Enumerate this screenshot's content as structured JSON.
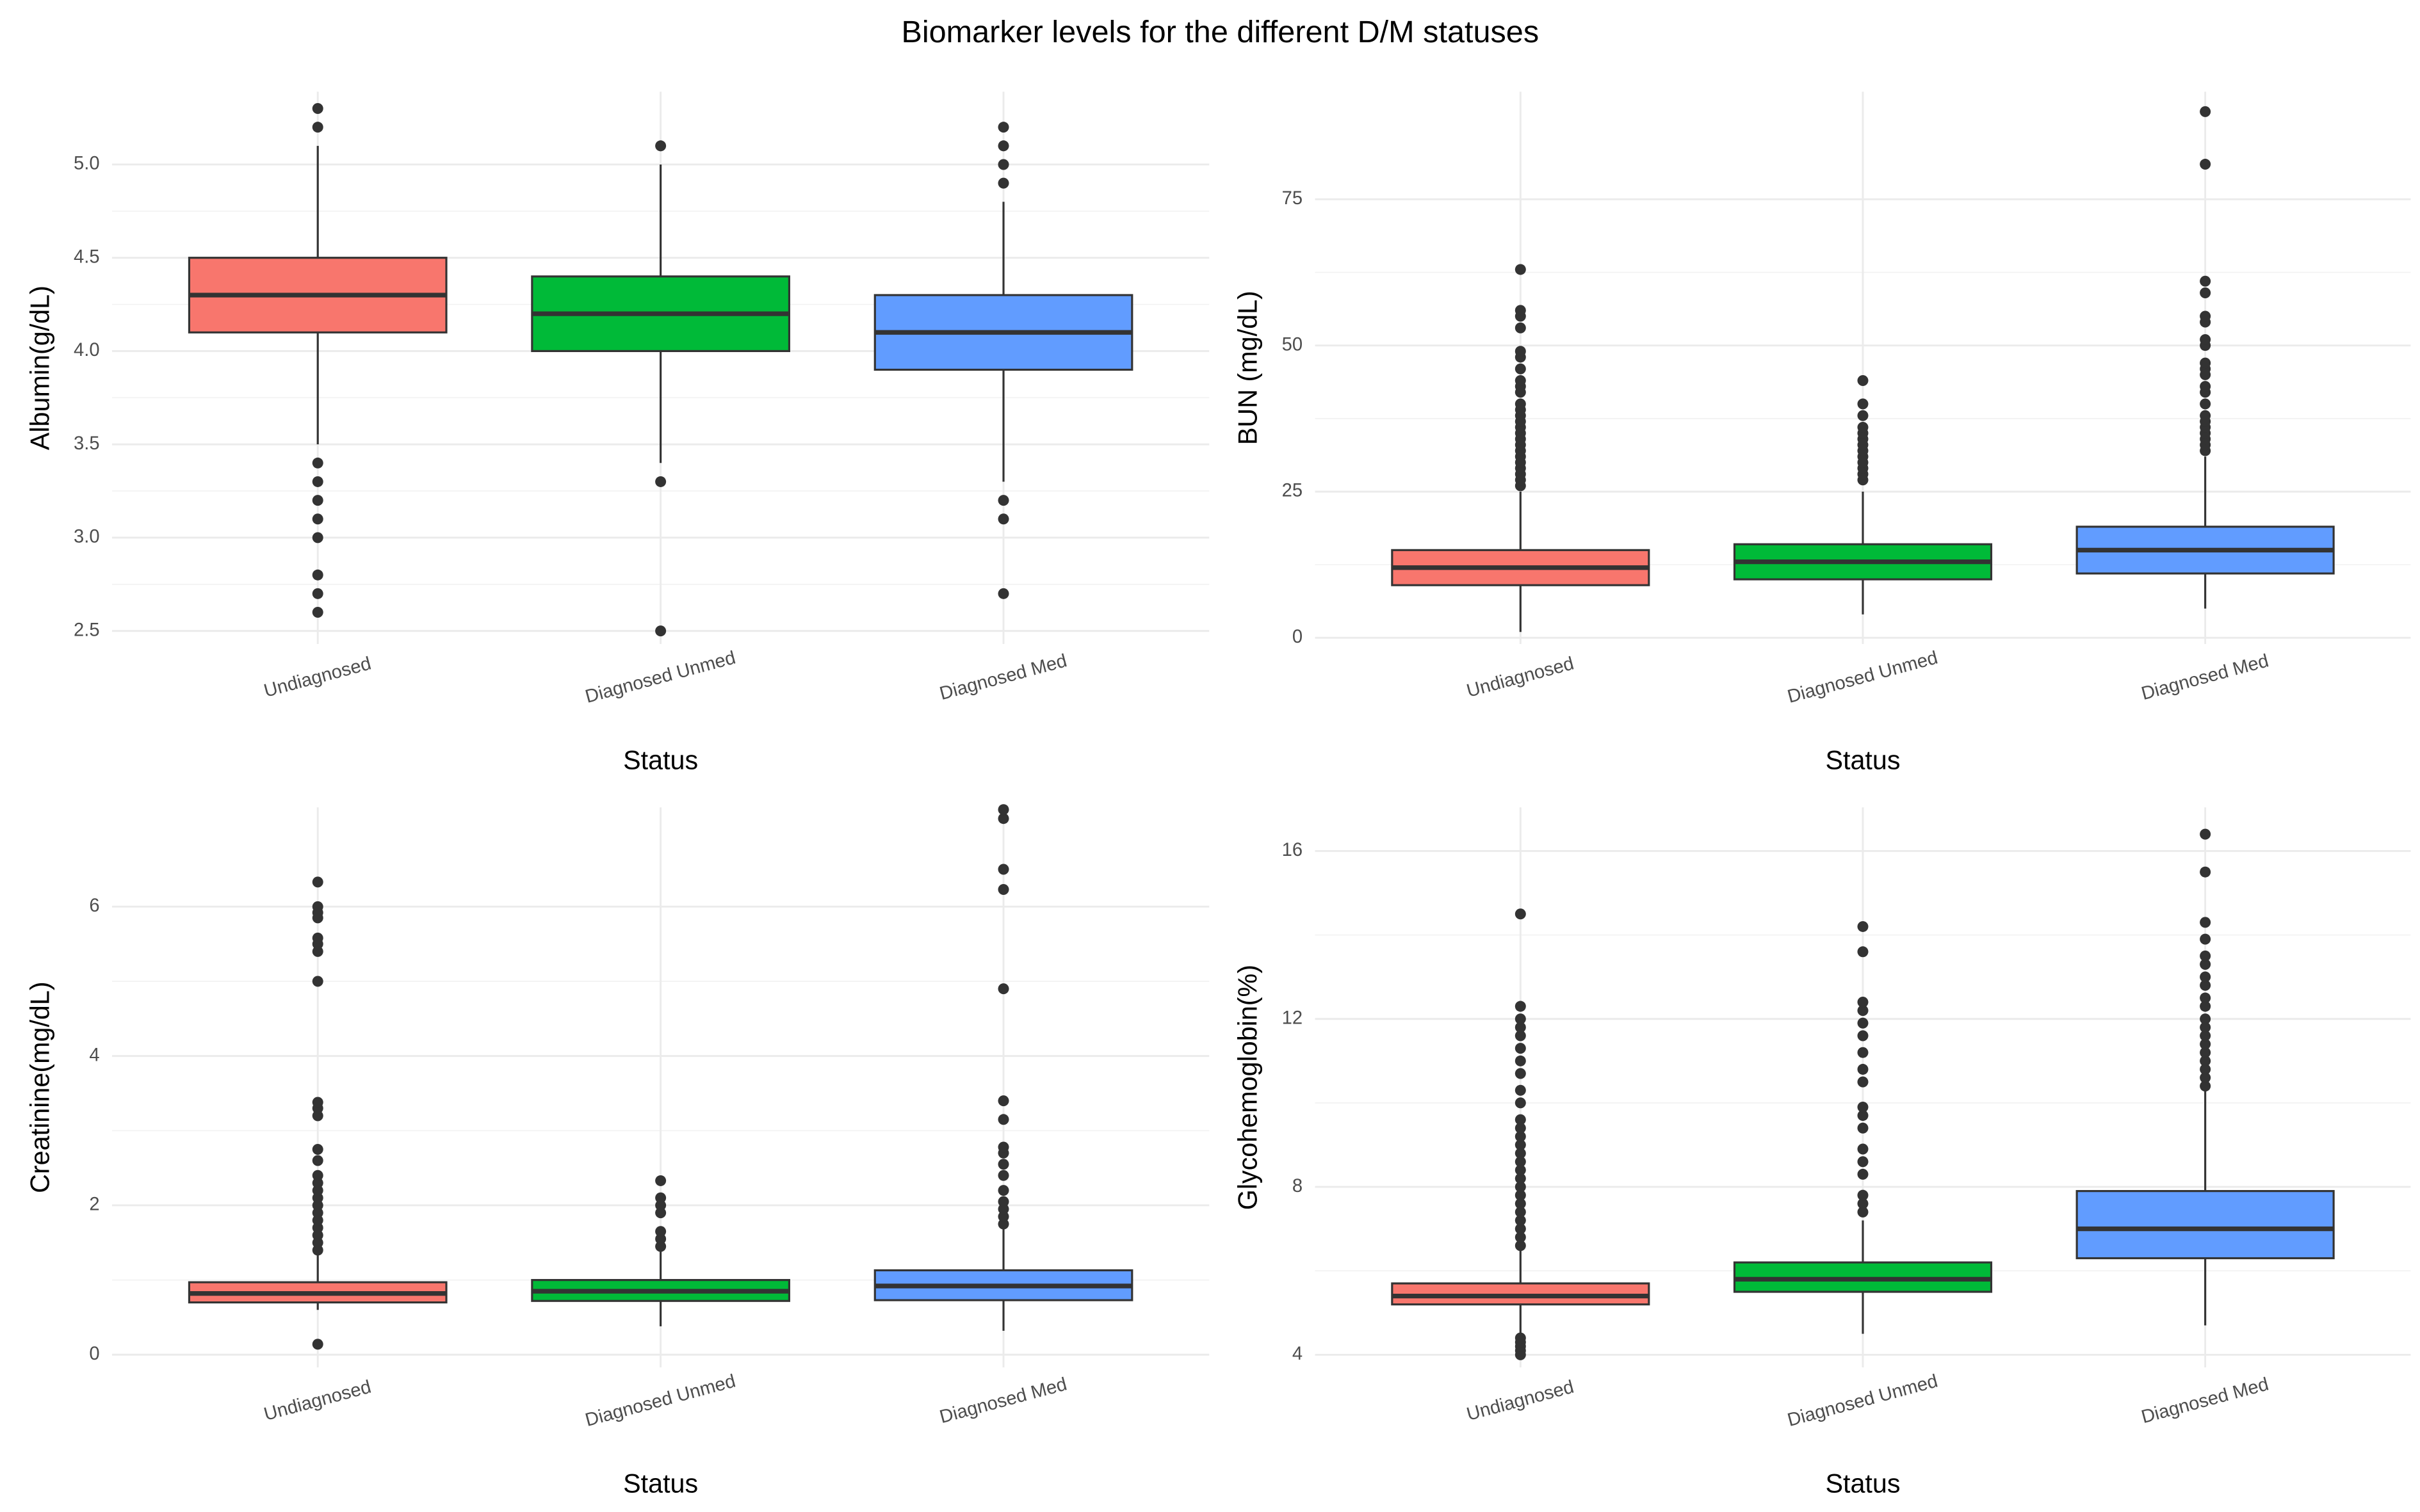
{
  "title": "Biomarker levels for the different D/M statuses",
  "chart_data": [
    {
      "type": "box",
      "y_label": "Albumin(g/dL)",
      "x_label": "Status",
      "categories": [
        "Undiagnosed",
        "Diagnosed Unmed",
        "Diagnosed Med"
      ],
      "colors": [
        "#f8766d",
        "#00ba38",
        "#619cff"
      ],
      "ylim": [
        2.43,
        5.39
      ],
      "yticks": [
        2.5,
        {
          "value": 3,
          "label": "3.0"
        },
        3.5,
        {
          "value": 4,
          "label": "4.0"
        },
        4.5,
        {
          "value": 5,
          "label": "5.0"
        }
      ],
      "boxes": [
        {
          "low": 3.5,
          "q1": 4.1,
          "median": 4.3,
          "q3": 4.5,
          "high": 5.1,
          "outliers": [
            5.3,
            5.2,
            3.4,
            3.3,
            3.2,
            3.1,
            3.0,
            2.8,
            2.7,
            2.6
          ]
        },
        {
          "low": 3.4,
          "q1": 4.0,
          "median": 4.2,
          "q3": 4.4,
          "high": 5.0,
          "outliers": [
            5.1,
            3.3,
            2.5
          ]
        },
        {
          "low": 3.3,
          "q1": 3.9,
          "median": 4.1,
          "q3": 4.3,
          "high": 4.8,
          "outliers": [
            5.2,
            5.1,
            5.0,
            4.9,
            3.2,
            3.1,
            2.7
          ]
        }
      ]
    },
    {
      "type": "box",
      "y_label": "BUN (mg/dL)",
      "x_label": "Status",
      "categories": [
        "Undiagnosed",
        "Diagnosed Unmed",
        "Diagnosed Med"
      ],
      "colors": [
        "#f8766d",
        "#00ba38",
        "#619cff"
      ],
      "ylim": [
        -1.06,
        93.4
      ],
      "yticks": [
        0,
        25,
        50,
        75
      ],
      "boxes": [
        {
          "low": 1,
          "q1": 9,
          "median": 12,
          "q3": 15,
          "high": 25,
          "outliers": [
            26,
            27,
            28,
            29,
            30,
            31,
            32,
            33,
            34,
            35,
            36,
            37,
            38,
            39,
            40,
            42,
            43,
            44,
            46,
            48,
            49,
            53,
            55,
            56,
            63
          ]
        },
        {
          "low": 4,
          "q1": 10,
          "median": 13,
          "q3": 16,
          "high": 25,
          "outliers": [
            27,
            28,
            29,
            30,
            31,
            32,
            33,
            34,
            35,
            36,
            38,
            40,
            44
          ]
        },
        {
          "low": 5,
          "q1": 11,
          "median": 15,
          "q3": 19,
          "high": 31,
          "outliers": [
            32,
            33,
            34,
            35,
            36,
            37,
            38,
            40,
            42,
            43,
            45,
            46,
            47,
            50,
            51,
            54,
            55,
            59,
            61,
            81,
            90
          ]
        }
      ]
    },
    {
      "type": "box",
      "y_label": "Creatinine(mg/dL)",
      "x_label": "Status",
      "categories": [
        "Undiagnosed",
        "Diagnosed Unmed",
        "Diagnosed Med"
      ],
      "colors": [
        "#f8766d",
        "#00ba38",
        "#619cff"
      ],
      "ylim": [
        -0.17,
        7.33
      ],
      "yticks": [
        0,
        2,
        4,
        6
      ],
      "boxes": [
        {
          "low": 0.6,
          "q1": 0.7,
          "median": 0.82,
          "q3": 0.97,
          "high": 1.35,
          "outliers": [
            0.14,
            1.4,
            1.5,
            1.6,
            1.7,
            1.8,
            1.9,
            2.0,
            2.1,
            2.2,
            2.3,
            2.4,
            2.6,
            2.75,
            3.2,
            3.3,
            3.38,
            5.0,
            5.4,
            5.5,
            5.58,
            5.85,
            5.92,
            6.0,
            6.33
          ]
        },
        {
          "low": 0.38,
          "q1": 0.72,
          "median": 0.85,
          "q3": 1.0,
          "high": 1.4,
          "outliers": [
            1.45,
            1.55,
            1.65,
            1.9,
            2.0,
            2.1,
            2.33
          ]
        },
        {
          "low": 0.32,
          "q1": 0.73,
          "median": 0.92,
          "q3": 1.13,
          "high": 1.7,
          "outliers": [
            1.75,
            1.85,
            1.95,
            2.05,
            2.2,
            2.4,
            2.55,
            2.7,
            2.78,
            3.15,
            3.4,
            4.9,
            6.23,
            6.5,
            7.18,
            7.3
          ]
        }
      ]
    },
    {
      "type": "box",
      "y_label": "Glycohemoglobin(%)",
      "x_label": "Status",
      "categories": [
        "Undiagnosed",
        "Diagnosed Unmed",
        "Diagnosed Med"
      ],
      "colors": [
        "#f8766d",
        "#00ba38",
        "#619cff"
      ],
      "ylim": [
        3.7,
        17.04
      ],
      "yticks": [
        4,
        8,
        12,
        16
      ],
      "boxes": [
        {
          "low": 4.5,
          "q1": 5.2,
          "median": 5.4,
          "q3": 5.7,
          "high": 6.5,
          "outliers": [
            4.0,
            4.1,
            4.2,
            4.3,
            4.4,
            6.6,
            6.8,
            7.0,
            7.2,
            7.4,
            7.6,
            7.8,
            8.0,
            8.2,
            8.4,
            8.6,
            8.8,
            9.0,
            9.2,
            9.4,
            9.6,
            10.0,
            10.3,
            10.7,
            11.0,
            11.3,
            11.6,
            11.8,
            12.0,
            12.3,
            14.5
          ]
        },
        {
          "low": 4.5,
          "q1": 5.5,
          "median": 5.8,
          "q3": 6.2,
          "high": 7.2,
          "outliers": [
            7.4,
            7.6,
            7.8,
            8.3,
            8.6,
            8.9,
            9.4,
            9.7,
            9.9,
            10.5,
            10.8,
            11.2,
            11.6,
            11.9,
            12.2,
            12.4,
            13.6,
            14.2
          ]
        },
        {
          "low": 4.7,
          "q1": 6.3,
          "median": 7.0,
          "q3": 7.9,
          "high": 10.3,
          "outliers": [
            10.4,
            10.6,
            10.8,
            11.0,
            11.2,
            11.4,
            11.6,
            11.8,
            12.0,
            12.3,
            12.5,
            12.8,
            13.0,
            13.3,
            13.5,
            13.9,
            14.3,
            15.5,
            16.4
          ]
        }
      ]
    }
  ]
}
